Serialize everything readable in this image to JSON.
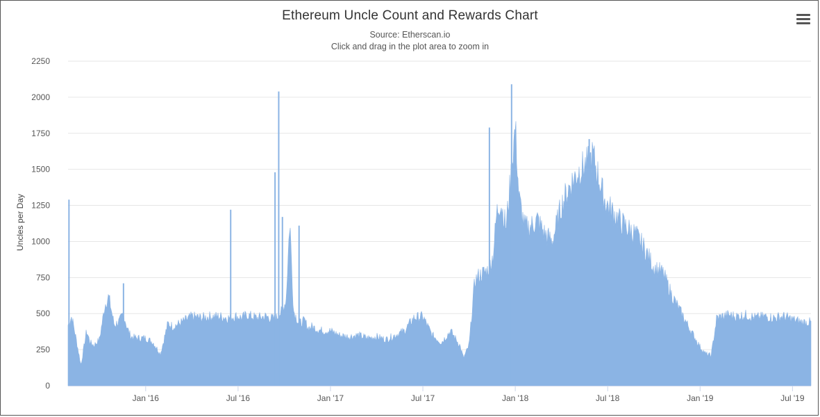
{
  "chart_data": {
    "type": "area",
    "title": "Ethereum Uncle Count and Rewards Chart",
    "subtitle": [
      "Source: Etherscan.io",
      "Click and drag in the plot area to zoom in"
    ],
    "ylabel": "Uncles per Day",
    "xlabel": "",
    "ylim": [
      0,
      2250
    ],
    "yticks": [
      0,
      250,
      500,
      750,
      1000,
      1250,
      1500,
      1750,
      2000,
      2250
    ],
    "xlim": [
      2015.58,
      2019.6
    ],
    "xticks": [
      {
        "label": "Jan '16",
        "x": 2016.0
      },
      {
        "label": "Jul '16",
        "x": 2016.5
      },
      {
        "label": "Jan '17",
        "x": 2017.0
      },
      {
        "label": "Jul '17",
        "x": 2017.5
      },
      {
        "label": "Jan '18",
        "x": 2018.0
      },
      {
        "label": "Jul '18",
        "x": 2018.5
      },
      {
        "label": "Jan '19",
        "x": 2019.0
      },
      {
        "label": "Jul '19",
        "x": 2019.5
      }
    ],
    "grid": true,
    "legend": "none",
    "color": "#8bb4e4",
    "series": [
      {
        "name": "Uncles per Day",
        "x": [
          2015.58,
          2015.6,
          2015.62,
          2015.65,
          2015.68,
          2015.7,
          2015.72,
          2015.75,
          2015.78,
          2015.8,
          2015.83,
          2015.86,
          2015.88,
          2015.9,
          2015.92,
          2015.95,
          2015.98,
          2016.0,
          2016.04,
          2016.08,
          2016.12,
          2016.15,
          2016.18,
          2016.21,
          2016.25,
          2016.3,
          2016.35,
          2016.4,
          2016.45,
          2016.48,
          2016.5,
          2016.52,
          2016.55,
          2016.6,
          2016.65,
          2016.7,
          2016.74,
          2016.76,
          2016.78,
          2016.8,
          2016.83,
          2016.86,
          2016.88,
          2016.9,
          2016.93,
          2016.96,
          2017.0,
          2017.05,
          2017.1,
          2017.15,
          2017.2,
          2017.25,
          2017.3,
          2017.35,
          2017.4,
          2017.45,
          2017.5,
          2017.55,
          2017.6,
          2017.65,
          2017.7,
          2017.72,
          2017.75,
          2017.78,
          2017.8,
          2017.85,
          2017.88,
          2017.9,
          2017.92,
          2017.95,
          2017.98,
          2018.0,
          2018.02,
          2018.05,
          2018.08,
          2018.12,
          2018.16,
          2018.2,
          2018.25,
          2018.3,
          2018.35,
          2018.4,
          2018.42,
          2018.45,
          2018.48,
          2018.5,
          2018.53,
          2018.56,
          2018.6,
          2018.65,
          2018.7,
          2018.75,
          2018.8,
          2018.85,
          2018.9,
          2018.95,
          2019.0,
          2019.03,
          2019.06,
          2019.09,
          2019.12,
          2019.15,
          2019.2,
          2019.25,
          2019.3,
          2019.35,
          2019.4,
          2019.45,
          2019.5,
          2019.55,
          2019.6
        ],
        "y": [
          420,
          480,
          350,
          140,
          380,
          300,
          280,
          320,
          560,
          620,
          420,
          450,
          500,
          400,
          340,
          330,
          330,
          330,
          300,
          220,
          430,
          410,
          430,
          450,
          480,
          470,
          480,
          480,
          470,
          480,
          480,
          470,
          490,
          470,
          480,
          460,
          520,
          600,
          1150,
          520,
          430,
          450,
          400,
          410,
          390,
          380,
          380,
          350,
          340,
          350,
          330,
          340,
          320,
          350,
          380,
          470,
          480,
          350,
          300,
          380,
          280,
          190,
          280,
          720,
          760,
          800,
          900,
          1200,
          1280,
          1100,
          1500,
          1800,
          1300,
          1100,
          1100,
          1150,
          1050,
          1000,
          1250,
          1400,
          1500,
          1550,
          1600,
          1450,
          1300,
          1250,
          1200,
          1150,
          1100,
          1050,
          950,
          820,
          780,
          620,
          500,
          380,
          270,
          220,
          210,
          470,
          480,
          490,
          480,
          490,
          470,
          480,
          470,
          480,
          460,
          440,
          440
        ]
      }
    ],
    "spikes": [
      {
        "x": 2015.585,
        "y": 1290
      },
      {
        "x": 2015.88,
        "y": 710
      },
      {
        "x": 2016.46,
        "y": 1220
      },
      {
        "x": 2016.7,
        "y": 1480
      },
      {
        "x": 2016.72,
        "y": 2040
      },
      {
        "x": 2016.74,
        "y": 1170
      },
      {
        "x": 2016.83,
        "y": 1110
      },
      {
        "x": 2017.86,
        "y": 1790
      },
      {
        "x": 2017.98,
        "y": 2090
      },
      {
        "x": 2018.4,
        "y": 1710
      }
    ]
  }
}
